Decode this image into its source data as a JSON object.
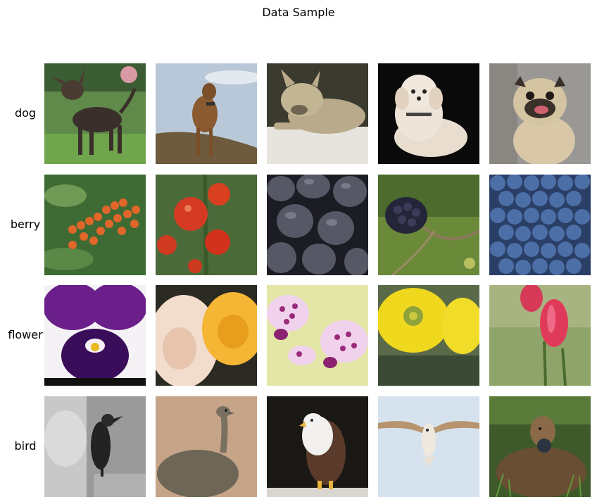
{
  "figure": {
    "title": "Data Sample",
    "rows": [
      {
        "label": "dog",
        "images": [
          {
            "icon": "brindle-chihuahua-on-grass"
          },
          {
            "icon": "brown-dog-on-hill"
          },
          {
            "icon": "french-bulldog-lying"
          },
          {
            "icon": "fluffy-white-dog-black-bg"
          },
          {
            "icon": "pug-sitting"
          }
        ]
      },
      {
        "label": "berry",
        "images": [
          {
            "icon": "orange-rowan-berries"
          },
          {
            "icon": "red-tomatoes-on-vine"
          },
          {
            "icon": "dark-plums"
          },
          {
            "icon": "blackberry-on-branch"
          },
          {
            "icon": "blueberries-pile"
          }
        ]
      },
      {
        "label": "flower",
        "images": [
          {
            "icon": "purple-white-pansy"
          },
          {
            "icon": "cream-and-yellow-roses"
          },
          {
            "icon": "spotted-pink-orchids"
          },
          {
            "icon": "yellow-cactus-flower"
          },
          {
            "icon": "red-tulips"
          }
        ]
      },
      {
        "label": "bird",
        "images": [
          {
            "icon": "crow-on-statue-bw"
          },
          {
            "icon": "emu-walking"
          },
          {
            "icon": "eagle-perched"
          },
          {
            "icon": "seagull-in-flight"
          },
          {
            "icon": "duck-in-grass"
          }
        ]
      }
    ]
  }
}
